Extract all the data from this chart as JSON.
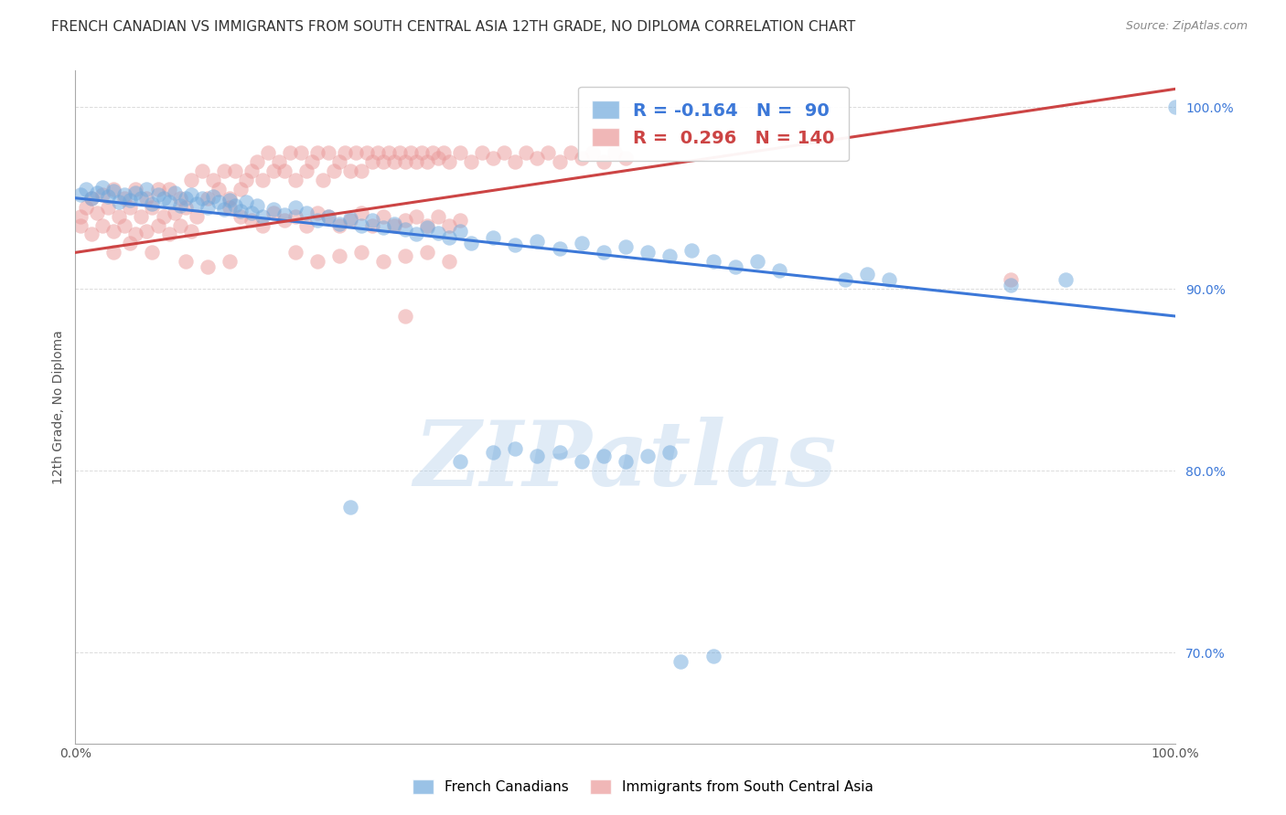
{
  "title": "FRENCH CANADIAN VS IMMIGRANTS FROM SOUTH CENTRAL ASIA 12TH GRADE, NO DIPLOMA CORRELATION CHART",
  "source": "Source: ZipAtlas.com",
  "ylabel": "12th Grade, No Diploma",
  "legend_blue_label": "French Canadians",
  "legend_pink_label": "Immigrants from South Central Asia",
  "R_blue": -0.164,
  "N_blue": 90,
  "R_pink": 0.296,
  "N_pink": 140,
  "watermark": "ZIPatlas",
  "blue_color": "#6fa8dc",
  "pink_color": "#ea9999",
  "blue_line_color": "#3c78d8",
  "pink_line_color": "#cc4444",
  "blue_scatter": [
    [
      0.5,
      95.2
    ],
    [
      1.0,
      95.5
    ],
    [
      1.5,
      95.0
    ],
    [
      2.0,
      95.3
    ],
    [
      2.5,
      95.6
    ],
    [
      3.0,
      95.1
    ],
    [
      3.5,
      95.4
    ],
    [
      4.0,
      94.8
    ],
    [
      4.5,
      95.2
    ],
    [
      5.0,
      94.9
    ],
    [
      5.5,
      95.3
    ],
    [
      6.0,
      95.0
    ],
    [
      6.5,
      95.5
    ],
    [
      7.0,
      94.7
    ],
    [
      7.5,
      95.2
    ],
    [
      8.0,
      95.0
    ],
    [
      8.5,
      94.8
    ],
    [
      9.0,
      95.3
    ],
    [
      9.5,
      94.6
    ],
    [
      10.0,
      95.0
    ],
    [
      10.5,
      95.2
    ],
    [
      11.0,
      94.7
    ],
    [
      11.5,
      95.0
    ],
    [
      12.0,
      94.5
    ],
    [
      12.5,
      95.1
    ],
    [
      13.0,
      94.8
    ],
    [
      13.5,
      94.4
    ],
    [
      14.0,
      94.9
    ],
    [
      14.5,
      94.6
    ],
    [
      15.0,
      94.3
    ],
    [
      15.5,
      94.8
    ],
    [
      16.0,
      94.2
    ],
    [
      16.5,
      94.6
    ],
    [
      17.0,
      94.0
    ],
    [
      18.0,
      94.4
    ],
    [
      19.0,
      94.1
    ],
    [
      20.0,
      94.5
    ],
    [
      21.0,
      94.2
    ],
    [
      22.0,
      93.8
    ],
    [
      23.0,
      94.0
    ],
    [
      24.0,
      93.6
    ],
    [
      25.0,
      93.9
    ],
    [
      26.0,
      93.5
    ],
    [
      27.0,
      93.8
    ],
    [
      28.0,
      93.4
    ],
    [
      29.0,
      93.6
    ],
    [
      30.0,
      93.3
    ],
    [
      31.0,
      93.0
    ],
    [
      32.0,
      93.4
    ],
    [
      33.0,
      93.1
    ],
    [
      34.0,
      92.8
    ],
    [
      35.0,
      93.2
    ],
    [
      36.0,
      92.5
    ],
    [
      38.0,
      92.8
    ],
    [
      40.0,
      92.4
    ],
    [
      42.0,
      92.6
    ],
    [
      44.0,
      92.2
    ],
    [
      46.0,
      92.5
    ],
    [
      48.0,
      92.0
    ],
    [
      50.0,
      92.3
    ],
    [
      52.0,
      92.0
    ],
    [
      54.0,
      91.8
    ],
    [
      56.0,
      92.1
    ],
    [
      58.0,
      91.5
    ],
    [
      35.0,
      80.5
    ],
    [
      38.0,
      81.0
    ],
    [
      40.0,
      81.2
    ],
    [
      42.0,
      80.8
    ],
    [
      44.0,
      81.0
    ],
    [
      46.0,
      80.5
    ],
    [
      48.0,
      80.8
    ],
    [
      50.0,
      80.5
    ],
    [
      52.0,
      80.8
    ],
    [
      54.0,
      81.0
    ],
    [
      25.0,
      78.0
    ],
    [
      60.0,
      91.2
    ],
    [
      62.0,
      91.5
    ],
    [
      64.0,
      91.0
    ],
    [
      70.0,
      90.5
    ],
    [
      72.0,
      90.8
    ],
    [
      74.0,
      90.5
    ],
    [
      85.0,
      90.2
    ],
    [
      90.0,
      90.5
    ],
    [
      55.0,
      69.5
    ],
    [
      58.0,
      69.8
    ],
    [
      100.0,
      100.0
    ]
  ],
  "pink_scatter": [
    [
      0.5,
      94.0
    ],
    [
      1.0,
      94.5
    ],
    [
      1.5,
      95.0
    ],
    [
      2.0,
      94.2
    ],
    [
      2.5,
      95.2
    ],
    [
      3.0,
      94.5
    ],
    [
      3.5,
      95.5
    ],
    [
      4.0,
      94.0
    ],
    [
      4.5,
      95.0
    ],
    [
      5.0,
      94.5
    ],
    [
      5.5,
      95.5
    ],
    [
      6.0,
      94.0
    ],
    [
      6.5,
      95.0
    ],
    [
      7.0,
      94.5
    ],
    [
      7.5,
      95.5
    ],
    [
      8.0,
      94.0
    ],
    [
      8.5,
      95.5
    ],
    [
      9.0,
      94.2
    ],
    [
      9.5,
      95.0
    ],
    [
      10.0,
      94.5
    ],
    [
      10.5,
      96.0
    ],
    [
      11.0,
      94.0
    ],
    [
      11.5,
      96.5
    ],
    [
      12.0,
      95.0
    ],
    [
      12.5,
      96.0
    ],
    [
      13.0,
      95.5
    ],
    [
      13.5,
      96.5
    ],
    [
      14.0,
      95.0
    ],
    [
      14.5,
      96.5
    ],
    [
      15.0,
      95.5
    ],
    [
      15.5,
      96.0
    ],
    [
      16.0,
      96.5
    ],
    [
      16.5,
      97.0
    ],
    [
      17.0,
      96.0
    ],
    [
      17.5,
      97.5
    ],
    [
      18.0,
      96.5
    ],
    [
      18.5,
      97.0
    ],
    [
      19.0,
      96.5
    ],
    [
      19.5,
      97.5
    ],
    [
      20.0,
      96.0
    ],
    [
      20.5,
      97.5
    ],
    [
      21.0,
      96.5
    ],
    [
      21.5,
      97.0
    ],
    [
      22.0,
      97.5
    ],
    [
      22.5,
      96.0
    ],
    [
      23.0,
      97.5
    ],
    [
      23.5,
      96.5
    ],
    [
      24.0,
      97.0
    ],
    [
      24.5,
      97.5
    ],
    [
      25.0,
      96.5
    ],
    [
      25.5,
      97.5
    ],
    [
      26.0,
      96.5
    ],
    [
      26.5,
      97.5
    ],
    [
      27.0,
      97.0
    ],
    [
      27.5,
      97.5
    ],
    [
      28.0,
      97.0
    ],
    [
      28.5,
      97.5
    ],
    [
      29.0,
      97.0
    ],
    [
      29.5,
      97.5
    ],
    [
      30.0,
      97.0
    ],
    [
      30.5,
      97.5
    ],
    [
      31.0,
      97.0
    ],
    [
      31.5,
      97.5
    ],
    [
      32.0,
      97.0
    ],
    [
      32.5,
      97.5
    ],
    [
      33.0,
      97.2
    ],
    [
      33.5,
      97.5
    ],
    [
      34.0,
      97.0
    ],
    [
      35.0,
      97.5
    ],
    [
      36.0,
      97.0
    ],
    [
      37.0,
      97.5
    ],
    [
      38.0,
      97.2
    ],
    [
      39.0,
      97.5
    ],
    [
      40.0,
      97.0
    ],
    [
      41.0,
      97.5
    ],
    [
      42.0,
      97.2
    ],
    [
      43.0,
      97.5
    ],
    [
      44.0,
      97.0
    ],
    [
      45.0,
      97.5
    ],
    [
      46.0,
      97.2
    ],
    [
      47.0,
      97.5
    ],
    [
      48.0,
      97.0
    ],
    [
      49.0,
      97.5
    ],
    [
      50.0,
      97.2
    ],
    [
      14.0,
      94.5
    ],
    [
      15.0,
      94.0
    ],
    [
      16.0,
      93.8
    ],
    [
      17.0,
      93.5
    ],
    [
      18.0,
      94.2
    ],
    [
      19.0,
      93.8
    ],
    [
      20.0,
      94.0
    ],
    [
      21.0,
      93.5
    ],
    [
      22.0,
      94.2
    ],
    [
      23.0,
      94.0
    ],
    [
      24.0,
      93.5
    ],
    [
      25.0,
      93.8
    ],
    [
      26.0,
      94.2
    ],
    [
      27.0,
      93.5
    ],
    [
      28.0,
      94.0
    ],
    [
      29.0,
      93.5
    ],
    [
      30.0,
      93.8
    ],
    [
      31.0,
      94.0
    ],
    [
      32.0,
      93.5
    ],
    [
      33.0,
      94.0
    ],
    [
      34.0,
      93.5
    ],
    [
      35.0,
      93.8
    ],
    [
      0.5,
      93.5
    ],
    [
      1.5,
      93.0
    ],
    [
      2.5,
      93.5
    ],
    [
      3.5,
      93.2
    ],
    [
      4.5,
      93.5
    ],
    [
      5.5,
      93.0
    ],
    [
      6.5,
      93.2
    ],
    [
      7.5,
      93.5
    ],
    [
      8.5,
      93.0
    ],
    [
      9.5,
      93.5
    ],
    [
      10.5,
      93.2
    ],
    [
      20.0,
      92.0
    ],
    [
      22.0,
      91.5
    ],
    [
      24.0,
      91.8
    ],
    [
      26.0,
      92.0
    ],
    [
      28.0,
      91.5
    ],
    [
      30.0,
      91.8
    ],
    [
      32.0,
      92.0
    ],
    [
      34.0,
      91.5
    ],
    [
      30.0,
      88.5
    ],
    [
      85.0,
      90.5
    ],
    [
      10.0,
      91.5
    ],
    [
      12.0,
      91.2
    ],
    [
      14.0,
      91.5
    ],
    [
      3.5,
      92.0
    ],
    [
      5.0,
      92.5
    ],
    [
      7.0,
      92.0
    ]
  ],
  "xlim": [
    0,
    100
  ],
  "ylim": [
    65,
    102
  ],
  "yticks": [
    70,
    80,
    90,
    100
  ],
  "ytick_labels": [
    "70.0%",
    "80.0%",
    "90.0%",
    "100.0%"
  ],
  "xtick_labels": [
    "0.0%",
    "100.0%"
  ],
  "blue_trend": [
    0,
    100,
    95.0,
    88.5
  ],
  "pink_trend": [
    0,
    100,
    92.0,
    101.0
  ],
  "grid_color": "#cccccc",
  "background_color": "#ffffff",
  "title_fontsize": 11,
  "axis_label_fontsize": 10,
  "legend_fontsize": 14,
  "tick_fontsize": 10
}
